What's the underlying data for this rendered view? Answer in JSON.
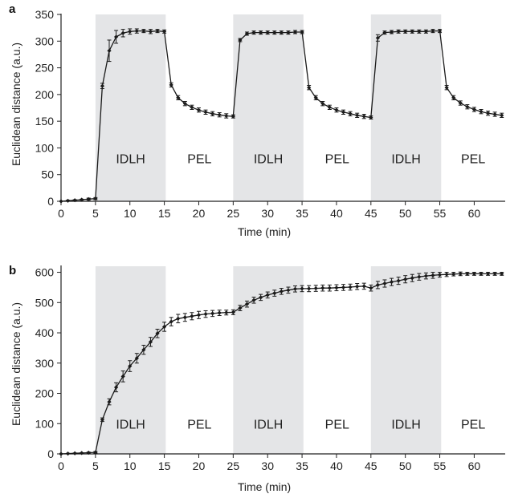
{
  "chart_data": [
    {
      "panel": "a",
      "type": "line",
      "xlabel": "Time (min)",
      "ylabel": "Euclidean distance (a.u.)",
      "xlim": [
        0,
        64.5
      ],
      "ylim": [
        0,
        350
      ],
      "x_ticks": [
        0,
        5,
        10,
        15,
        20,
        25,
        30,
        35,
        40,
        45,
        50,
        55,
        60
      ],
      "y_ticks": [
        0,
        50,
        100,
        150,
        200,
        250,
        300,
        350
      ],
      "bands": [
        {
          "label": "IDLH",
          "x0": 5,
          "x1": 15.2,
          "shaded": true
        },
        {
          "label": "PEL",
          "x0": 15.2,
          "x1": 25,
          "shaded": false
        },
        {
          "label": "IDLH",
          "x0": 25,
          "x1": 35.2,
          "shaded": true
        },
        {
          "label": "PEL",
          "x0": 35.2,
          "x1": 45,
          "shaded": false
        },
        {
          "label": "IDLH",
          "x0": 45,
          "x1": 55.2,
          "shaded": true
        },
        {
          "label": "PEL",
          "x0": 55.2,
          "x1": 64.5,
          "shaded": false
        }
      ],
      "band_label_y": 80,
      "series": [
        {
          "x": [
            0,
            1,
            2,
            3,
            4,
            5,
            6,
            7,
            8,
            9,
            10,
            11,
            12,
            13,
            14,
            15,
            16,
            17,
            18,
            19,
            20,
            21,
            22,
            23,
            24,
            25,
            26,
            27,
            28,
            29,
            30,
            31,
            32,
            33,
            34,
            35,
            36,
            37,
            38,
            39,
            40,
            41,
            42,
            43,
            44,
            45,
            46,
            47,
            48,
            49,
            50,
            51,
            52,
            53,
            54,
            55,
            56,
            57,
            58,
            59,
            60,
            61,
            62,
            63,
            64
          ],
          "y": [
            0,
            1,
            2,
            3,
            4,
            5,
            216,
            282,
            308,
            315,
            318,
            319,
            319,
            318,
            319,
            318,
            218,
            194,
            183,
            176,
            171,
            167,
            164,
            162,
            160,
            159,
            302,
            314,
            316,
            316,
            316,
            316,
            316,
            316,
            317,
            317,
            213,
            194,
            183,
            176,
            171,
            167,
            164,
            161,
            159,
            157,
            306,
            316,
            317,
            318,
            318,
            318,
            318,
            318,
            319,
            319,
            213,
            194,
            184,
            177,
            172,
            168,
            165,
            163,
            161
          ],
          "err": [
            0,
            1,
            1,
            1,
            2,
            2,
            5,
            20,
            12,
            7,
            5,
            4,
            3,
            4,
            3,
            3,
            4,
            4,
            4,
            4,
            4,
            4,
            4,
            4,
            4,
            3,
            3,
            3,
            3,
            3,
            3,
            3,
            3,
            3,
            3,
            3,
            4,
            4,
            4,
            4,
            4,
            4,
            4,
            4,
            4,
            3,
            6,
            3,
            3,
            3,
            3,
            3,
            3,
            3,
            3,
            3,
            4,
            4,
            4,
            4,
            4,
            4,
            4,
            4,
            4
          ]
        }
      ]
    },
    {
      "panel": "b",
      "type": "line",
      "xlabel": "Time (min)",
      "ylabel": "Euclidean distance (a.u.)",
      "xlim": [
        0,
        64.5
      ],
      "ylim": [
        0,
        620
      ],
      "x_ticks": [
        0,
        5,
        10,
        15,
        20,
        25,
        30,
        35,
        40,
        45,
        50,
        55,
        60
      ],
      "y_ticks": [
        0,
        100,
        200,
        300,
        400,
        500,
        600
      ],
      "bands": [
        {
          "label": "IDLH",
          "x0": 5,
          "x1": 15.2,
          "shaded": true
        },
        {
          "label": "PEL",
          "x0": 15.2,
          "x1": 25,
          "shaded": false
        },
        {
          "label": "IDLH",
          "x0": 25,
          "x1": 35.2,
          "shaded": true
        },
        {
          "label": "PEL",
          "x0": 35.2,
          "x1": 45,
          "shaded": false
        },
        {
          "label": "IDLH",
          "x0": 45,
          "x1": 55.2,
          "shaded": true
        },
        {
          "label": "PEL",
          "x0": 55.2,
          "x1": 64.5,
          "shaded": false
        }
      ],
      "band_label_y": 100,
      "series": [
        {
          "x": [
            0,
            1,
            2,
            3,
            4,
            5,
            6,
            7,
            8,
            9,
            10,
            11,
            12,
            13,
            14,
            15,
            16,
            17,
            18,
            19,
            20,
            21,
            22,
            23,
            24,
            25,
            26,
            27,
            28,
            29,
            30,
            31,
            32,
            33,
            34,
            35,
            36,
            37,
            38,
            39,
            40,
            41,
            42,
            43,
            44,
            45,
            46,
            47,
            48,
            49,
            50,
            51,
            52,
            53,
            54,
            55,
            56,
            57,
            58,
            59,
            60,
            61,
            62,
            63,
            64
          ],
          "y": [
            0,
            1,
            2,
            3,
            4,
            5,
            113,
            172,
            220,
            256,
            290,
            316,
            344,
            370,
            398,
            420,
            437,
            447,
            451,
            455,
            459,
            462,
            464,
            466,
            467,
            468,
            482,
            495,
            508,
            517,
            525,
            531,
            537,
            541,
            545,
            546,
            546,
            547,
            548,
            548,
            549,
            550,
            551,
            553,
            554,
            548,
            558,
            563,
            568,
            572,
            577,
            581,
            585,
            588,
            590,
            592,
            593,
            594,
            595,
            595,
            595,
            595,
            595,
            595,
            595
          ],
          "err": [
            0,
            1,
            1,
            1,
            2,
            3,
            6,
            10,
            15,
            18,
            18,
            16,
            15,
            15,
            14,
            15,
            14,
            14,
            13,
            12,
            12,
            11,
            10,
            9,
            8,
            8,
            9,
            10,
            10,
            10,
            10,
            10,
            10,
            10,
            10,
            10,
            10,
            10,
            10,
            10,
            10,
            10,
            10,
            10,
            10,
            10,
            12,
            12,
            12,
            12,
            12,
            12,
            11,
            10,
            10,
            8,
            7,
            6,
            6,
            5,
            5,
            5,
            5,
            5,
            5
          ]
        }
      ]
    }
  ],
  "panels": [
    {
      "letter": "a",
      "ylabel": "Euclidean distance (a.u.)",
      "xlabel": "Time (min)"
    },
    {
      "letter": "b",
      "ylabel": "Euclidean distance (a.u.)",
      "xlabel": "Time (min)"
    }
  ],
  "colors": {
    "band_fill": "#e4e5e7",
    "line": "#1a1a1a",
    "axis": "#222222"
  }
}
